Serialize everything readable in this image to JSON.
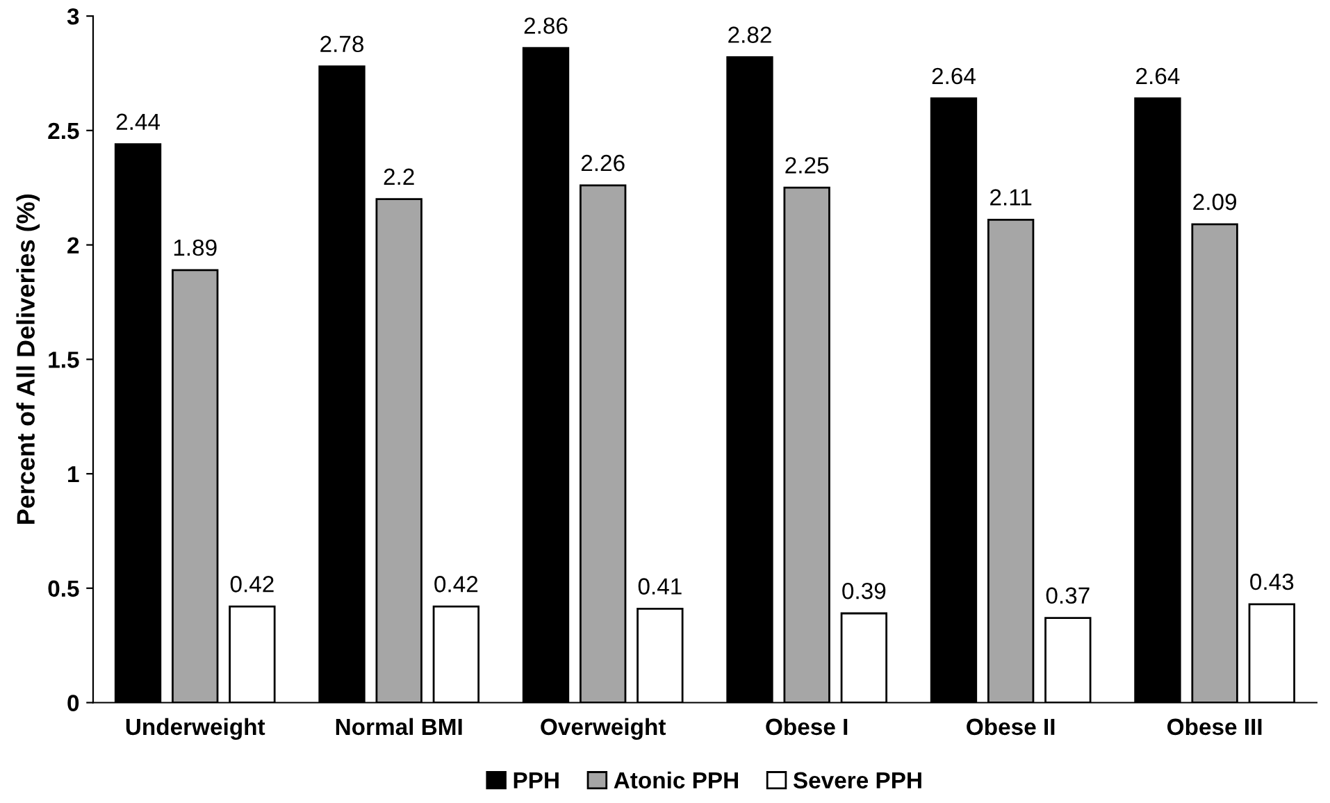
{
  "chart_data": {
    "type": "bar",
    "ylabel": "Percent of All Deliveries (%)",
    "categories": [
      "Underweight",
      "Normal BMI",
      "Overweight",
      "Obese I",
      "Obese II",
      "Obese III"
    ],
    "series": [
      {
        "name": "PPH",
        "color": "#000000",
        "values": [
          2.44,
          2.78,
          2.86,
          2.82,
          2.64,
          2.64
        ]
      },
      {
        "name": "Atonic PPH",
        "color": "#a6a6a6",
        "values": [
          1.89,
          2.2,
          2.26,
          2.25,
          2.11,
          2.09
        ]
      },
      {
        "name": "Severe PPH",
        "color": "#ffffff",
        "values": [
          0.42,
          0.42,
          0.41,
          0.39,
          0.37,
          0.43
        ]
      }
    ],
    "ylim": [
      0,
      3
    ],
    "yticks": [
      0,
      0.5,
      1,
      1.5,
      2,
      2.5,
      3
    ],
    "data_labels": true,
    "legend": "bottom",
    "grid": false
  }
}
